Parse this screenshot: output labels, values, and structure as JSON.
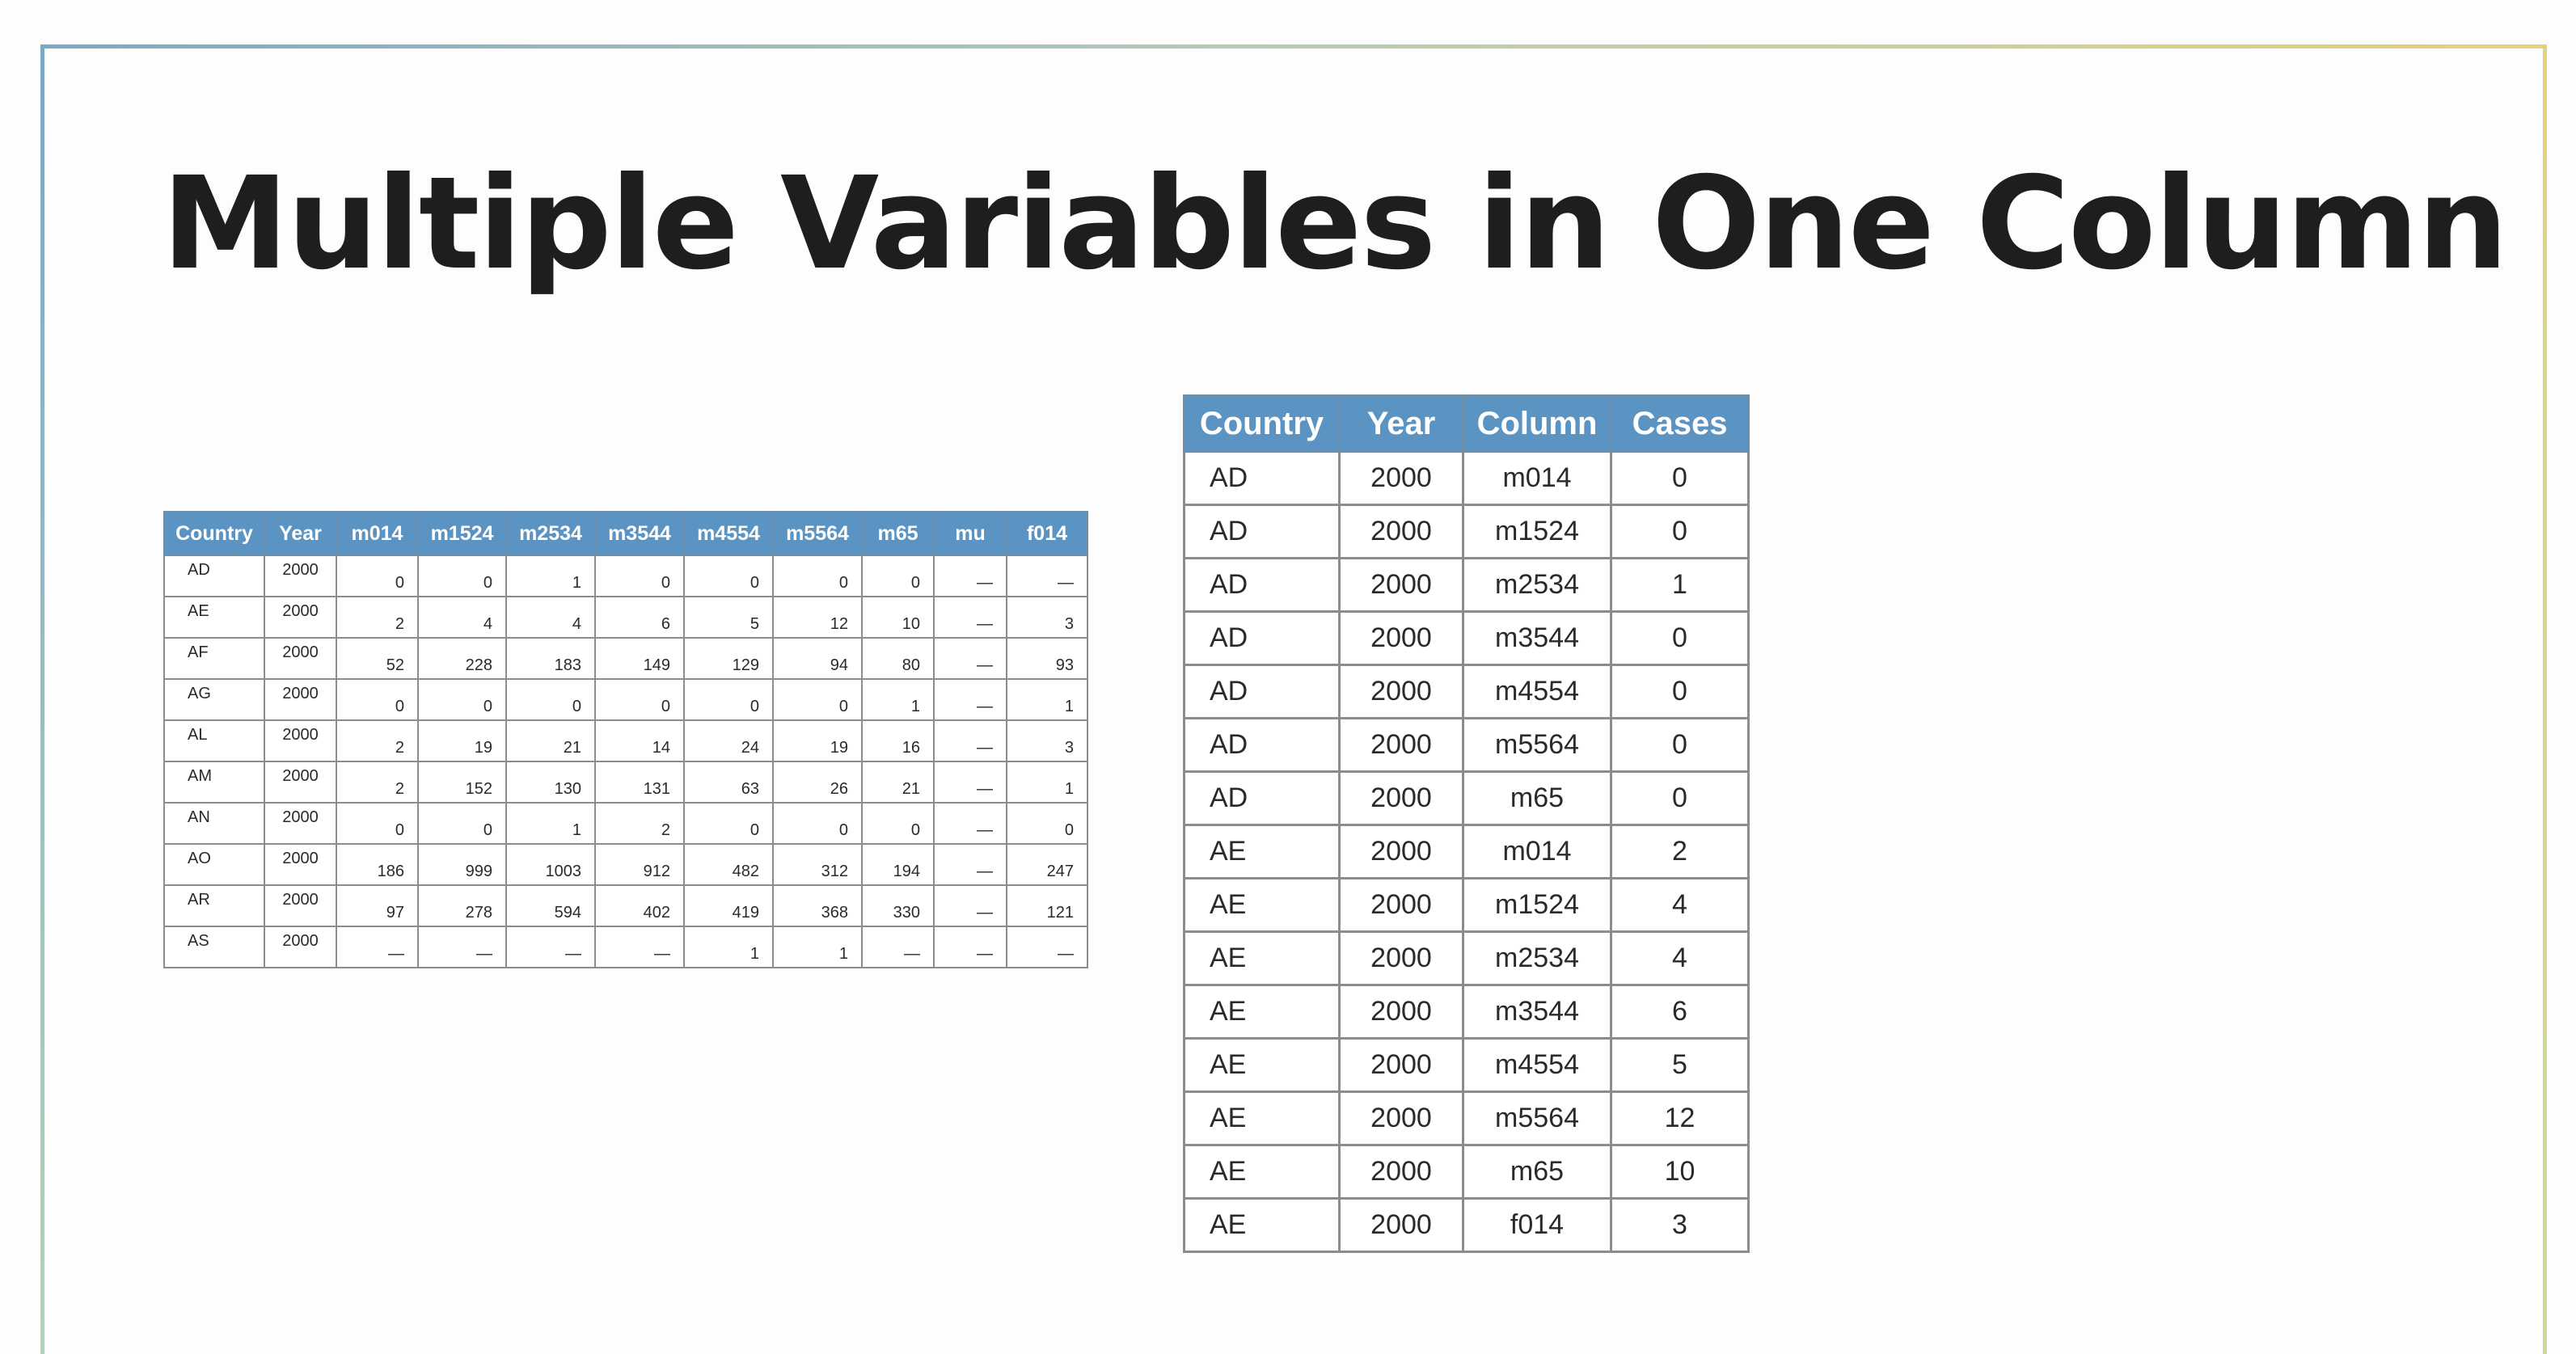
{
  "title": "Multiple Variables in One Column",
  "wide_table": {
    "headers": [
      "Country",
      "Year",
      "m014",
      "m1524",
      "m2534",
      "m3544",
      "m4554",
      "m5564",
      "m65",
      "mu",
      "f014"
    ],
    "rows": [
      [
        "AD",
        "2000",
        "0",
        "0",
        "1",
        "0",
        "0",
        "0",
        "0",
        "—",
        "—"
      ],
      [
        "AE",
        "2000",
        "2",
        "4",
        "4",
        "6",
        "5",
        "12",
        "10",
        "—",
        "3"
      ],
      [
        "AF",
        "2000",
        "52",
        "228",
        "183",
        "149",
        "129",
        "94",
        "80",
        "—",
        "93"
      ],
      [
        "AG",
        "2000",
        "0",
        "0",
        "0",
        "0",
        "0",
        "0",
        "1",
        "—",
        "1"
      ],
      [
        "AL",
        "2000",
        "2",
        "19",
        "21",
        "14",
        "24",
        "19",
        "16",
        "—",
        "3"
      ],
      [
        "AM",
        "2000",
        "2",
        "152",
        "130",
        "131",
        "63",
        "26",
        "21",
        "—",
        "1"
      ],
      [
        "AN",
        "2000",
        "0",
        "0",
        "1",
        "2",
        "0",
        "0",
        "0",
        "—",
        "0"
      ],
      [
        "AO",
        "2000",
        "186",
        "999",
        "1003",
        "912",
        "482",
        "312",
        "194",
        "—",
        "247"
      ],
      [
        "AR",
        "2000",
        "97",
        "278",
        "594",
        "402",
        "419",
        "368",
        "330",
        "—",
        "121"
      ],
      [
        "AS",
        "2000",
        "—",
        "—",
        "—",
        "—",
        "1",
        "1",
        "—",
        "—",
        "—"
      ]
    ]
  },
  "long_table": {
    "headers": [
      "Country",
      "Year",
      "Column",
      "Cases"
    ],
    "rows": [
      [
        "AD",
        "2000",
        "m014",
        "0"
      ],
      [
        "AD",
        "2000",
        "m1524",
        "0"
      ],
      [
        "AD",
        "2000",
        "m2534",
        "1"
      ],
      [
        "AD",
        "2000",
        "m3544",
        "0"
      ],
      [
        "AD",
        "2000",
        "m4554",
        "0"
      ],
      [
        "AD",
        "2000",
        "m5564",
        "0"
      ],
      [
        "AD",
        "2000",
        "m65",
        "0"
      ],
      [
        "AE",
        "2000",
        "m014",
        "2"
      ],
      [
        "AE",
        "2000",
        "m1524",
        "4"
      ],
      [
        "AE",
        "2000",
        "m2534",
        "4"
      ],
      [
        "AE",
        "2000",
        "m3544",
        "6"
      ],
      [
        "AE",
        "2000",
        "m4554",
        "5"
      ],
      [
        "AE",
        "2000",
        "m5564",
        "12"
      ],
      [
        "AE",
        "2000",
        "m65",
        "10"
      ],
      [
        "AE",
        "2000",
        "f014",
        "3"
      ]
    ]
  }
}
